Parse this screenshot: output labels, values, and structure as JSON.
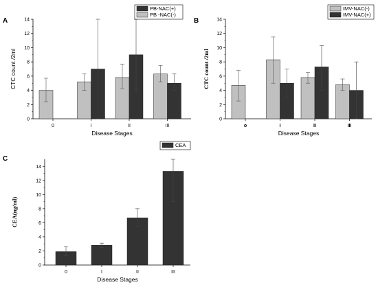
{
  "chart_data": [
    {
      "panel": "A",
      "type": "bar",
      "xlabel": "Disease Stages",
      "ylabel": "CTC count /2ml",
      "categories": [
        "0",
        "I",
        "II",
        "III"
      ],
      "ylim": [
        0,
        14
      ],
      "yticks": [
        0,
        2,
        4,
        6,
        8,
        10,
        12,
        14
      ],
      "legend_position": "top-right",
      "series": [
        {
          "name": "PB -NAC(-)",
          "color": "#c0c0c0",
          "values": [
            4.0,
            5.2,
            5.8,
            6.3
          ],
          "err_low": [
            2.4,
            4.0,
            4.2,
            5.2
          ],
          "err_high": [
            5.7,
            6.3,
            7.7,
            7.5
          ]
        },
        {
          "name": "PB-NAC(+)",
          "color": "#333333",
          "values": [
            null,
            7.0,
            9.0,
            5.0
          ],
          "err_low": [
            null,
            0.0,
            4.0,
            4.0
          ],
          "err_high": [
            null,
            14.0,
            14.0,
            6.3
          ]
        }
      ],
      "legend_order": [
        1,
        0
      ]
    },
    {
      "panel": "B",
      "type": "bar",
      "xlabel": "Disease Stages",
      "ylabel": "CTC count /2ml",
      "categories": [
        "o",
        "I",
        "II",
        "III"
      ],
      "ylim": [
        0,
        14
      ],
      "yticks": [
        0,
        2,
        4,
        6,
        8,
        10,
        12,
        14
      ],
      "legend_position": "top-right",
      "series": [
        {
          "name": "IMV-NAC(-)",
          "color": "#c0c0c0",
          "values": [
            4.7,
            8.3,
            5.8,
            4.8
          ],
          "err_low": [
            2.5,
            5.0,
            5.0,
            4.0
          ],
          "err_high": [
            6.8,
            11.5,
            6.5,
            5.6
          ]
        },
        {
          "name": "IMV-NAC(+)",
          "color": "#333333",
          "values": [
            null,
            5.0,
            7.3,
            4.0
          ],
          "err_low": [
            null,
            3.0,
            4.0,
            0.0
          ],
          "err_high": [
            null,
            7.0,
            10.3,
            8.0
          ]
        }
      ],
      "legend_order": [
        0,
        1
      ]
    },
    {
      "panel": "C",
      "type": "bar",
      "xlabel": "Disease Stages",
      "ylabel": "CEA(ng/ml)",
      "categories": [
        "0",
        "I",
        "II",
        "III"
      ],
      "ylim": [
        0,
        15
      ],
      "yticks": [
        0,
        2,
        4,
        6,
        8,
        10,
        12,
        14
      ],
      "legend_position": "top-right",
      "series": [
        {
          "name": "CEA",
          "color": "#333333",
          "values": [
            1.9,
            2.8,
            6.7,
            13.3
          ],
          "err_low": [
            1.3,
            2.5,
            5.5,
            9.0
          ],
          "err_high": [
            2.6,
            3.1,
            8.0,
            15.0
          ]
        }
      ],
      "legend_order": [
        0
      ]
    }
  ]
}
